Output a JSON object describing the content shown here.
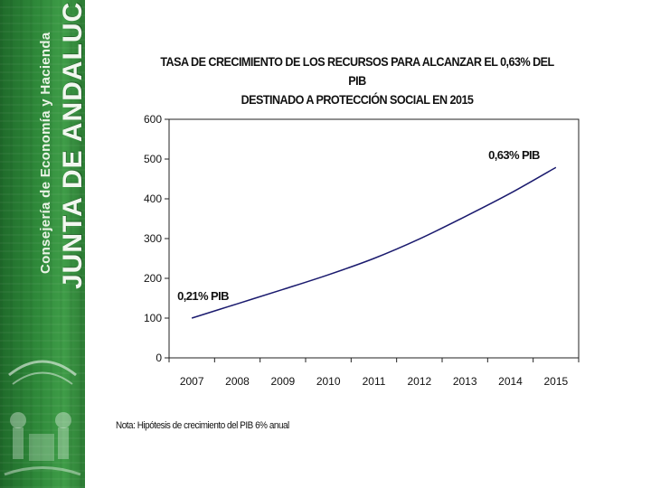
{
  "sidebar": {
    "org_name": "JUNTA DE ANDALUCIA",
    "department": "Consejería de Economía y Hacienda"
  },
  "chart_data": {
    "type": "line",
    "title": "TASA DE CRECIMIENTO DE LOS RECURSOS PARA ALCANZAR EL 0,63% DEL PIB",
    "subtitle": "DESTINADO A PROTECCIÓN SOCIAL EN 2015",
    "xlabel": "",
    "ylabel": "",
    "categories": [
      "2007",
      "2008",
      "2009",
      "2010",
      "2011",
      "2012",
      "2013",
      "2014",
      "2015"
    ],
    "values": [
      100,
      136,
      172,
      209,
      250,
      299,
      355,
      414,
      479
    ],
    "ylim": [
      0,
      600
    ],
    "yticks": [
      "0",
      "100",
      "200",
      "300",
      "400",
      "500",
      "600"
    ],
    "grid": false,
    "legend": "none",
    "line_color": "#1a1a6e",
    "annotations": [
      {
        "text": "0,21% PIB",
        "category": "2007",
        "value": 100
      },
      {
        "text": "0,63% PIB",
        "category": "2015",
        "value": 479
      }
    ]
  },
  "note": "Nota: Hipótesis de crecimiento del PIB 6% anual"
}
